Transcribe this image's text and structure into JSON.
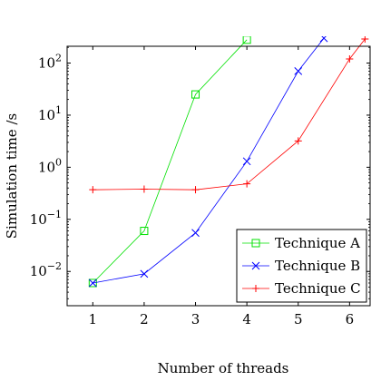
{
  "chart_data": {
    "type": "line",
    "title": "",
    "xlabel": "Number of threads",
    "ylabel": "Simulation time /s",
    "x_scale": "linear",
    "y_scale": "log",
    "xlim": [
      0.5,
      6.4
    ],
    "ylim": [
      0.0022,
      210
    ],
    "x_ticks": [
      1,
      2,
      3,
      4,
      5,
      6
    ],
    "x_tick_labels": [
      "1",
      "2",
      "3",
      "4",
      "5",
      "6"
    ],
    "y_ticks": [
      0.01,
      0.1,
      1,
      10,
      100
    ],
    "y_tick_labels": [
      {
        "base": "10",
        "exp": "−2"
      },
      {
        "base": "10",
        "exp": "−1"
      },
      {
        "base": "10",
        "exp": "0"
      },
      {
        "base": "10",
        "exp": "1"
      },
      {
        "base": "10",
        "exp": "2"
      }
    ],
    "grid": false,
    "legend_position": "bottom-right",
    "series": [
      {
        "name": "Technique A",
        "color": "#00e000",
        "marker": "square",
        "x": [
          1,
          2,
          3,
          4
        ],
        "y": [
          0.006,
          0.06,
          25,
          280
        ]
      },
      {
        "name": "Technique B",
        "color": "#0000ff",
        "marker": "x",
        "x": [
          1,
          2,
          3,
          4,
          5,
          5.5
        ],
        "y": [
          0.006,
          0.009,
          0.055,
          1.3,
          70,
          300
        ]
      },
      {
        "name": "Technique C",
        "color": "#ff0000",
        "marker": "plus",
        "x": [
          1,
          2,
          3,
          4,
          5,
          6,
          6.3
        ],
        "y": [
          0.37,
          0.38,
          0.37,
          0.48,
          3.2,
          120,
          290
        ]
      }
    ]
  }
}
